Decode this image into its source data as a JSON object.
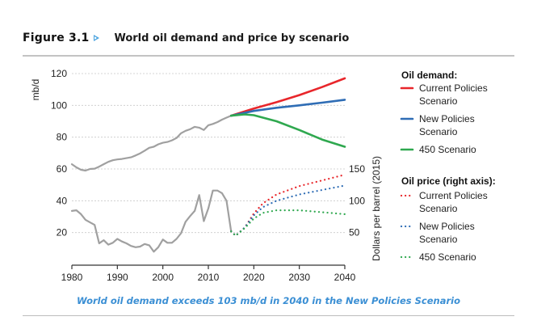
{
  "figure": {
    "number": "Figure 3.1",
    "title": "World oil demand and price by scenario",
    "caption": "World oil demand exceeds 103 mb/d in 2040 in the New Policies Scenario",
    "accent_color": "#4aa3df",
    "caption_color": "#3b8fd4"
  },
  "chart_data": {
    "type": "line",
    "title": "World oil demand and price by scenario",
    "xlabel": "",
    "ylabel": "mb/d",
    "ylabel_right": "Dollars per barrel (2015)",
    "xlim": [
      1980,
      2040
    ],
    "ylim": [
      0,
      120
    ],
    "ylim_right": [
      0,
      300
    ],
    "x_ticks": [
      "1980",
      "1990",
      "2000",
      "2010",
      "2020",
      "2030",
      "2040"
    ],
    "y_ticks": [
      "20",
      "40",
      "60",
      "80",
      "100",
      "120"
    ],
    "y_ticks_right": [
      "50",
      "100",
      "150"
    ],
    "grid": true,
    "legend_position": "right",
    "legend": {
      "demand_heading": "Oil demand:",
      "price_heading": "Oil price (right axis):",
      "entries_demand": [
        {
          "lines": [
            "Current Policies",
            "Scenario"
          ],
          "color": "#e8262b",
          "style": "solid"
        },
        {
          "lines": [
            "New Policies",
            "Scenario"
          ],
          "color": "#2f6db5",
          "style": "solid"
        },
        {
          "lines": [
            "450 Scenario"
          ],
          "color": "#2fa84f",
          "style": "solid"
        }
      ],
      "entries_price": [
        {
          "lines": [
            "Current Policies",
            "Scenario"
          ],
          "color": "#e8262b",
          "style": "dotted"
        },
        {
          "lines": [
            "New Policies",
            "Scenario"
          ],
          "color": "#2f6db5",
          "style": "dotted"
        },
        {
          "lines": [
            "450 Scenario"
          ],
          "color": "#2fa84f",
          "style": "dotted"
        }
      ]
    },
    "series": [
      {
        "name": "Oil demand (historical)",
        "axis": "left",
        "color": "#a0a0a0",
        "style": "solid",
        "x": [
          1980,
          1981,
          1982,
          1983,
          1984,
          1985,
          1986,
          1987,
          1988,
          1989,
          1990,
          1991,
          1992,
          1993,
          1994,
          1995,
          1996,
          1997,
          1998,
          1999,
          2000,
          2001,
          2002,
          2003,
          2004,
          2005,
          2006,
          2007,
          2008,
          2009,
          2010,
          2011,
          2012,
          2013,
          2014,
          2015
        ],
        "values": [
          63,
          61,
          59.5,
          59,
          60,
          60.2,
          61.5,
          63,
          64.5,
          65.5,
          66,
          66.3,
          66.8,
          67.3,
          68.5,
          69.8,
          71.5,
          73.3,
          74,
          75.5,
          76.5,
          77,
          78,
          79.5,
          82.5,
          84,
          85,
          86.5,
          86,
          84.5,
          87.5,
          88.3,
          89.5,
          91,
          92.3,
          93.5
        ]
      },
      {
        "name": "Oil demand - Current Policies Scenario",
        "axis": "left",
        "color": "#e8262b",
        "style": "solid",
        "x": [
          2015,
          2020,
          2025,
          2030,
          2035,
          2040
        ],
        "values": [
          93.5,
          98,
          102,
          106.5,
          111.5,
          117
        ]
      },
      {
        "name": "Oil demand - New Policies Scenario",
        "axis": "left",
        "color": "#2f6db5",
        "style": "solid",
        "x": [
          2015,
          2020,
          2025,
          2030,
          2035,
          2040
        ],
        "values": [
          93.5,
          96.5,
          98.5,
          100,
          101.7,
          103.5
        ]
      },
      {
        "name": "Oil demand - 450 Scenario",
        "axis": "left",
        "color": "#2fa84f",
        "style": "solid",
        "x": [
          2015,
          2018,
          2020,
          2025,
          2030,
          2035,
          2040
        ],
        "values": [
          93.5,
          94.3,
          93.8,
          90,
          84.5,
          78.5,
          74
        ]
      },
      {
        "name": "Oil price (historical)",
        "axis": "right",
        "color": "#a0a0a0",
        "style": "solid",
        "x": [
          1980,
          1981,
          1982,
          1983,
          1984,
          1985,
          1986,
          1987,
          1988,
          1989,
          1990,
          1991,
          1992,
          1993,
          1994,
          1995,
          1996,
          1997,
          1998,
          1999,
          2000,
          2001,
          2002,
          2003,
          2004,
          2005,
          2006,
          2007,
          2008,
          2009,
          2010,
          2011,
          2012,
          2013,
          2014,
          2015
        ],
        "values": [
          84,
          85,
          79,
          70,
          66,
          62,
          33,
          38,
          31,
          34,
          40,
          36,
          33,
          29,
          27,
          28,
          32,
          30,
          20,
          27,
          39,
          34,
          34,
          40,
          49,
          67,
          76,
          84,
          109,
          68,
          88,
          116,
          116,
          112,
          100,
          52
        ]
      },
      {
        "name": "Oil price - Current Policies Scenario",
        "axis": "right",
        "color": "#e8262b",
        "style": "dotted",
        "x": [
          2015,
          2016,
          2018,
          2020,
          2022,
          2025,
          2030,
          2035,
          2040
        ],
        "values": [
          52,
          45,
          58,
          80,
          96,
          110,
          123,
          132,
          141
        ]
      },
      {
        "name": "Oil price - New Policies Scenario",
        "axis": "right",
        "color": "#2f6db5",
        "style": "dotted",
        "x": [
          2015,
          2016,
          2018,
          2020,
          2022,
          2025,
          2030,
          2035,
          2040
        ],
        "values": [
          52,
          45,
          58,
          77,
          90,
          100,
          110,
          117,
          124
        ]
      },
      {
        "name": "Oil price - 450 Scenario",
        "axis": "right",
        "color": "#2fa84f",
        "style": "dotted",
        "x": [
          2015,
          2016,
          2018,
          2020,
          2022,
          2025,
          2030,
          2035,
          2040
        ],
        "values": [
          52,
          45,
          57,
          72,
          81,
          85,
          85,
          82,
          79
        ]
      }
    ]
  }
}
